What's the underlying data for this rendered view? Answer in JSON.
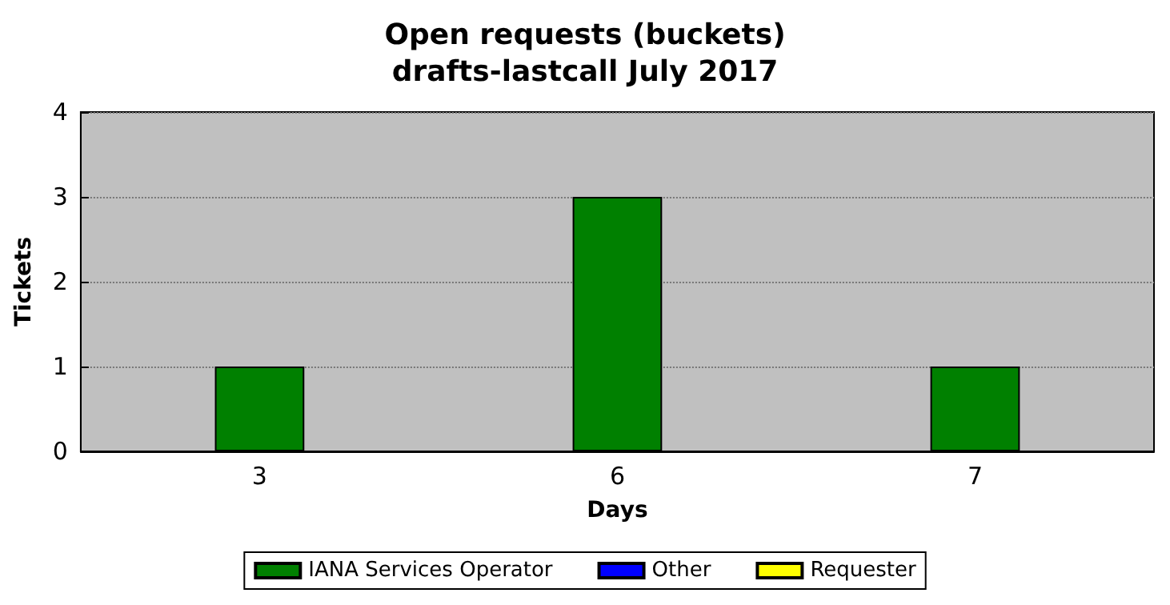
{
  "chart_data": {
    "type": "bar",
    "title": "Open requests (buckets)",
    "subtitle": "drafts-lastcall July 2017",
    "xlabel": "Days",
    "ylabel": "Tickets",
    "categories": [
      "3",
      "6",
      "7"
    ],
    "series": [
      {
        "name": "IANA Services Operator",
        "color": "#008000",
        "values": [
          1,
          3,
          1
        ]
      },
      {
        "name": "Other",
        "color": "#0000ff",
        "values": [
          0,
          0,
          0
        ]
      },
      {
        "name": "Requester",
        "color": "#ffff00",
        "values": [
          0,
          0,
          0
        ]
      }
    ],
    "stacked": true,
    "ylim": [
      0,
      4
    ],
    "yticks": [
      0,
      1,
      2,
      3,
      4
    ],
    "grid": "y",
    "legend": "bottom"
  }
}
